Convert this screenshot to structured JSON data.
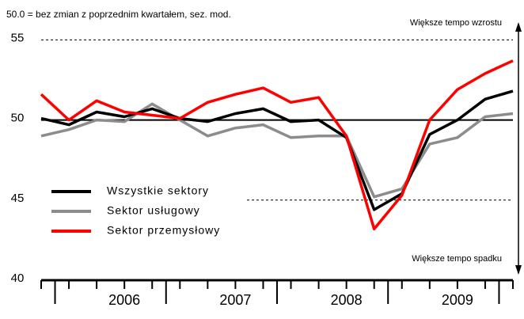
{
  "chart_data": {
    "type": "line",
    "annotations": [
      "50.0 = bez zmian z poprzednim kwartałem, sez. mod.",
      "Większe tempo wzrostu",
      "Większe tempo spadku"
    ],
    "categories": [
      null,
      null,
      null,
      null,
      null,
      null,
      null,
      null,
      null,
      null,
      null,
      null,
      null,
      null,
      null,
      null,
      null,
      null
    ],
    "year_labels": [
      "2006",
      "2007",
      "2008",
      "2009"
    ],
    "series": [
      {
        "name": "Wszystkie sektory",
        "color": "#000000",
        "values": [
          50.1,
          49.7,
          50.5,
          50.2,
          50.7,
          50.1,
          49.9,
          50.4,
          50.7,
          49.9,
          50.0,
          48.9,
          44.4,
          45.4,
          49.1,
          50.0,
          51.3,
          51.8
        ]
      },
      {
        "name": "Sektor usługowy",
        "color": "#8c8c8c",
        "values": [
          49.0,
          49.4,
          50.0,
          49.9,
          51.0,
          50.0,
          49.0,
          49.5,
          49.7,
          48.9,
          49.0,
          49.0,
          45.2,
          45.7,
          48.5,
          48.9,
          50.2,
          50.4
        ]
      },
      {
        "name": "Sektor przemysłowy",
        "color": "#ff0000",
        "values": [
          51.6,
          50.0,
          51.2,
          50.5,
          50.3,
          50.1,
          51.1,
          51.6,
          52.0,
          51.1,
          51.4,
          49.0,
          43.2,
          45.3,
          50.0,
          51.9,
          52.9,
          53.7
        ]
      }
    ],
    "ylim": [
      40,
      56.5
    ],
    "yticks": [
      40,
      45,
      50,
      55
    ]
  }
}
